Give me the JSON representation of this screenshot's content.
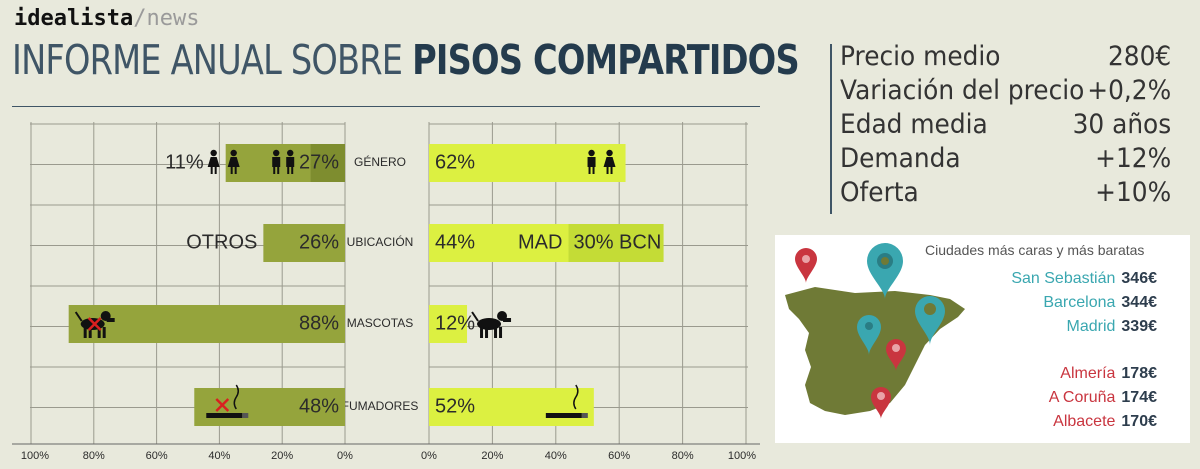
{
  "brand": {
    "name": "idealista",
    "sep": "/news"
  },
  "title": {
    "light": "INFORME ANUAL SOBRE",
    "bold": "PISOS COMPARTIDOS"
  },
  "stats": [
    {
      "label": "Precio medio",
      "value": "280€"
    },
    {
      "label": "Variación del precio",
      "value": "+0,2%"
    },
    {
      "label": "Edad media",
      "value": "30 años"
    },
    {
      "label": "Demanda",
      "value": "+12%"
    },
    {
      "label": "Oferta",
      "value": "+10%"
    }
  ],
  "chart_data": {
    "type": "bar",
    "categories": [
      "GÉNERO",
      "UBICACIÓN",
      "MASCOTAS",
      "FUMADORES"
    ],
    "left_ticks": [
      "100%",
      "80%",
      "60%",
      "40%",
      "20%",
      "0%"
    ],
    "right_ticks": [
      "0%",
      "20%",
      "40%",
      "60%",
      "80%",
      "100%"
    ],
    "left_values": [
      [
        {
          "value": 11,
          "label": "11%",
          "icon": "woman-icon"
        },
        {
          "value": 27,
          "label": "27%",
          "icon": "men-pair-icon"
        }
      ],
      [
        {
          "value": 26,
          "label": "26%",
          "side_label": "OTROS"
        }
      ],
      [
        {
          "value": 88,
          "label": "88%",
          "icon": "no-dog-icon"
        }
      ],
      [
        {
          "value": 48,
          "label": "48%",
          "icon": "no-smoking-icon"
        }
      ]
    ],
    "right_values": [
      [
        {
          "value": 62,
          "label": "62%",
          "icon": "couple-icon"
        }
      ],
      [
        {
          "value": 44,
          "label": "44%",
          "inner_label": "MAD"
        },
        {
          "value": 30,
          "label": "30% BCN"
        }
      ],
      [
        {
          "value": 12,
          "label": "12%",
          "icon": "dog-icon"
        }
      ],
      [
        {
          "value": 52,
          "label": "52%",
          "icon": "smoking-icon"
        }
      ]
    ],
    "colors": {
      "left": "#95a43c",
      "left_dark": "#7e8d2f",
      "right": "#dcf041",
      "right_dark": "#c4dc36",
      "grid": "#9a9a8e"
    },
    "xlim": [
      0,
      100
    ]
  },
  "map": {
    "title": "Ciudades más caras y más baratas",
    "expensive": [
      {
        "name": "San Sebastián",
        "price": "346€"
      },
      {
        "name": "Barcelona",
        "price": "344€"
      },
      {
        "name": "Madrid",
        "price": "339€"
      }
    ],
    "cheap": [
      {
        "name": "Almería",
        "price": "178€"
      },
      {
        "name": "A Coruña",
        "price": "174€"
      },
      {
        "name": "Albacete",
        "price": "170€"
      }
    ],
    "colors": {
      "land": "#6f7a36",
      "teal": "#3aa7b0",
      "red": "#c9353f"
    }
  }
}
